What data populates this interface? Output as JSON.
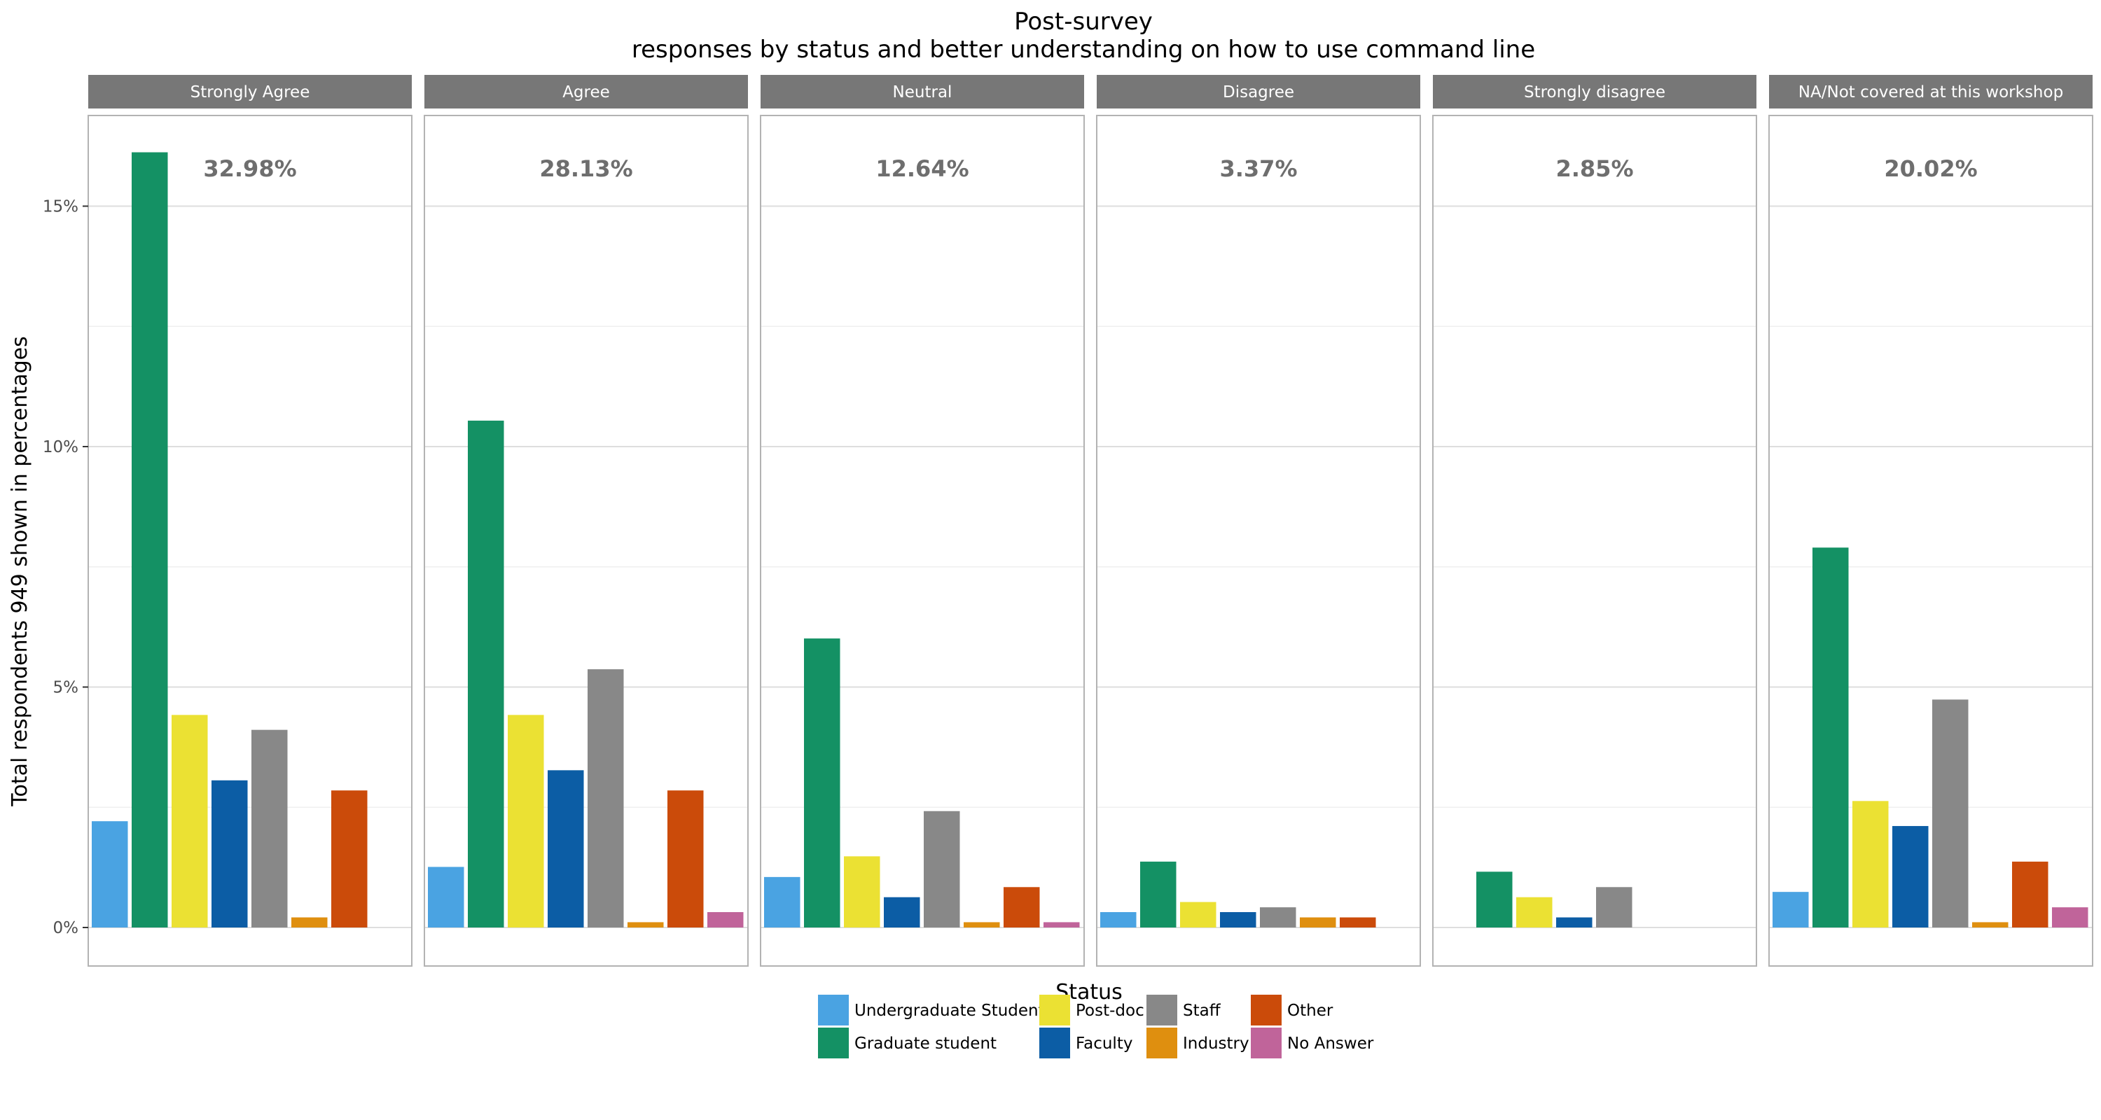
{
  "chart_data": {
    "type": "bar",
    "title": "Post-survey",
    "subtitle": "responses by status and better understanding on how to use command line",
    "xlabel": "Status",
    "ylabel": "Total respondents 949 shown in percentages",
    "ylim": [
      0,
      17.1
    ],
    "yticks": [
      0,
      5,
      10,
      15
    ],
    "ytick_labels": [
      "0%",
      "5%",
      "10%",
      "15%"
    ],
    "grid": true,
    "legend_position": "bottom",
    "series_names": [
      "Undergraduate Student",
      "Graduate student",
      "Post-doc",
      "Faculty",
      "Staff",
      "Industry",
      "Other",
      "No Answer"
    ],
    "colors": [
      "#4aa3e2",
      "#149164",
      "#ebe133",
      "#0c5da5",
      "#888888",
      "#df8f0f",
      "#cb4b0a",
      "#c0649a"
    ],
    "facets": [
      {
        "label": "Strongly Agree",
        "total_label": "32.98%",
        "values": [
          2.21,
          16.12,
          4.42,
          3.06,
          4.11,
          0.21,
          2.85,
          null
        ]
      },
      {
        "label": "Agree",
        "total_label": "28.13%",
        "values": [
          1.26,
          10.54,
          4.42,
          3.27,
          5.37,
          0.11,
          2.85,
          0.32
        ]
      },
      {
        "label": "Neutral",
        "total_label": "12.64%",
        "values": [
          1.05,
          6.01,
          1.48,
          0.63,
          2.42,
          0.11,
          0.84,
          0.11
        ]
      },
      {
        "label": "Disagree",
        "total_label": "3.37%",
        "values": [
          0.32,
          1.37,
          0.53,
          0.32,
          0.42,
          0.21,
          0.21,
          null
        ]
      },
      {
        "label": "Strongly disagree",
        "total_label": "2.85%",
        "values": [
          null,
          1.16,
          0.63,
          0.21,
          0.84,
          null,
          null,
          null
        ]
      },
      {
        "label": "NA/Not covered at this workshop",
        "total_label": "20.02%",
        "values": [
          0.74,
          7.9,
          2.63,
          2.11,
          4.74,
          0.11,
          1.37,
          0.42
        ]
      }
    ]
  }
}
